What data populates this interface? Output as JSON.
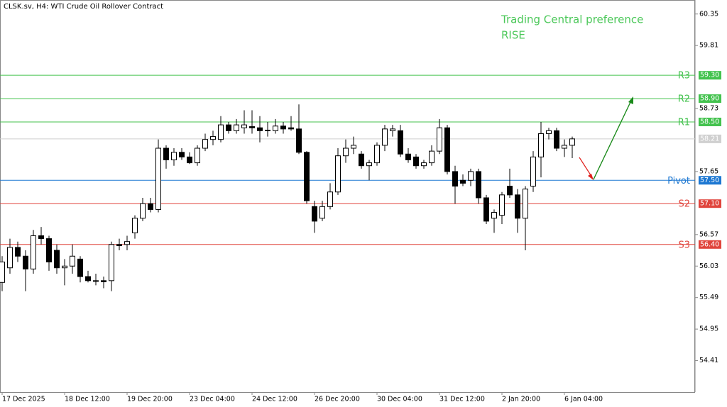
{
  "chart_data": {
    "type": "candlestick",
    "title": "CLSK.sv, H4:  WTI Crude Oil Rollover Contract",
    "annotation": [
      "Trading Central preference",
      "RISE"
    ],
    "annotation_color": "#4cc85a",
    "categories": [
      "17 Dec 2025",
      null,
      null,
      null,
      null,
      null,
      null,
      null,
      "18 Dec 12:00",
      null,
      null,
      null,
      null,
      null,
      null,
      null,
      "19 Dec 20:00",
      null,
      null,
      null,
      null,
      null,
      null,
      null,
      "23 Dec 04:00",
      null,
      null,
      null,
      null,
      null,
      null,
      null,
      "24 Dec 12:00",
      null,
      null,
      null,
      null,
      null,
      null,
      null,
      "26 Dec 20:00",
      null,
      null,
      null,
      null,
      null,
      null,
      null,
      "30 Dec 04:00",
      null,
      null,
      null,
      null,
      null,
      null,
      null,
      "31 Dec 12:00",
      null,
      null,
      null,
      null,
      null,
      null,
      null,
      "2 Jan 20:00",
      null,
      null,
      null,
      null,
      null,
      null,
      null,
      "6 Jan 04:00",
      null
    ],
    "open": [
      55.75,
      56.0,
      56.35,
      56.2,
      55.98,
      56.55,
      56.5,
      56.3,
      56.0,
      56.03,
      56.15,
      55.85,
      55.78,
      55.78,
      55.78,
      56.4,
      56.4,
      56.6,
      56.85,
      57.1,
      57.0,
      58.05,
      57.85,
      57.98,
      57.9,
      57.8,
      58.05,
      58.2,
      58.2,
      58.45,
      58.35,
      58.4,
      58.42,
      58.4,
      58.35,
      58.35,
      58.43,
      58.4,
      58.38,
      57.98,
      57.05,
      56.85,
      57.05,
      57.3,
      57.92,
      58.05,
      57.95,
      57.75,
      57.8,
      58.1,
      58.35,
      58.35,
      57.95,
      57.9,
      57.75,
      57.8,
      58.0,
      58.4,
      57.65,
      57.5,
      57.5,
      57.65,
      57.2,
      56.85,
      56.9,
      57.4,
      57.25,
      56.85,
      57.4,
      57.9,
      58.3,
      58.35,
      58.05,
      58.1
    ],
    "high": [
      56.2,
      56.5,
      56.45,
      56.3,
      56.65,
      56.7,
      56.55,
      56.4,
      56.15,
      56.4,
      56.2,
      55.95,
      55.9,
      55.85,
      56.45,
      56.5,
      56.55,
      56.9,
      57.2,
      57.2,
      58.2,
      58.1,
      58.05,
      58.05,
      57.98,
      58.1,
      58.3,
      58.35,
      58.6,
      58.5,
      58.55,
      58.7,
      58.7,
      58.6,
      58.5,
      58.55,
      58.5,
      58.6,
      58.8,
      58.0,
      57.15,
      57.15,
      57.45,
      58.05,
      58.2,
      58.25,
      58.0,
      57.85,
      58.15,
      58.45,
      58.45,
      58.45,
      58.05,
      57.95,
      57.85,
      58.1,
      58.55,
      58.45,
      57.75,
      57.6,
      57.7,
      57.7,
      57.25,
      57.0,
      57.3,
      57.7,
      57.35,
      57.4,
      58.0,
      58.5,
      58.4,
      58.4,
      58.2,
      58.25
    ],
    "low": [
      55.6,
      55.9,
      56.1,
      55.6,
      55.9,
      56.4,
      55.95,
      55.9,
      55.7,
      55.9,
      55.75,
      55.75,
      55.7,
      55.65,
      55.6,
      56.3,
      56.3,
      56.5,
      56.8,
      56.95,
      56.95,
      57.7,
      57.75,
      57.85,
      57.78,
      57.75,
      58.0,
      58.1,
      58.15,
      58.3,
      58.3,
      58.3,
      58.3,
      58.15,
      58.25,
      58.3,
      58.3,
      58.35,
      57.95,
      57.1,
      56.6,
      56.8,
      57.0,
      57.25,
      57.8,
      57.95,
      57.7,
      57.5,
      57.75,
      58.0,
      58.25,
      57.9,
      57.8,
      57.7,
      57.7,
      57.75,
      57.95,
      57.6,
      57.1,
      57.4,
      57.4,
      57.1,
      56.75,
      56.6,
      56.75,
      57.2,
      56.6,
      56.3,
      57.3,
      57.55,
      58.2,
      58.0,
      57.9,
      57.88
    ],
    "close": [
      56.1,
      56.35,
      56.2,
      55.98,
      56.55,
      56.5,
      56.1,
      56.0,
      56.03,
      56.2,
      55.85,
      55.78,
      55.77,
      55.76,
      56.4,
      56.38,
      56.45,
      56.85,
      57.1,
      57.0,
      58.05,
      57.85,
      57.98,
      57.9,
      57.8,
      58.05,
      58.2,
      58.25,
      58.45,
      58.35,
      58.45,
      58.45,
      58.4,
      58.35,
      58.36,
      58.43,
      58.38,
      58.38,
      57.98,
      57.15,
      56.8,
      57.05,
      57.3,
      57.92,
      58.05,
      58.1,
      57.75,
      57.8,
      58.1,
      58.38,
      58.38,
      57.95,
      57.85,
      57.75,
      57.8,
      58.0,
      58.4,
      57.65,
      57.4,
      57.45,
      57.65,
      57.2,
      56.8,
      56.95,
      57.25,
      57.25,
      56.85,
      57.35,
      57.9,
      58.3,
      58.35,
      58.05,
      58.1,
      58.21
    ],
    "levels": [
      {
        "name": "R3",
        "value": 59.3,
        "label": "59.30",
        "color": "#43c24e"
      },
      {
        "name": "R2",
        "value": 58.9,
        "label": "58.90",
        "color": "#43c24e"
      },
      {
        "name": "R1",
        "value": 58.5,
        "label": "58.50",
        "color": "#43c24e"
      },
      {
        "name": "Pivot",
        "value": 57.5,
        "label": "57.50",
        "color": "#1e78d2"
      },
      {
        "name": "S2",
        "value": 57.1,
        "label": "57.10",
        "color": "#e0443c"
      },
      {
        "name": "S3",
        "value": 56.4,
        "label": "56.40",
        "color": "#e0443c"
      }
    ],
    "current_price": 58.21,
    "ylim": [
      53.87,
      60.59
    ],
    "yticks": [
      60.35,
      59.81,
      58.73,
      57.65,
      56.57,
      56.03,
      55.49,
      54.95,
      54.41
    ]
  }
}
